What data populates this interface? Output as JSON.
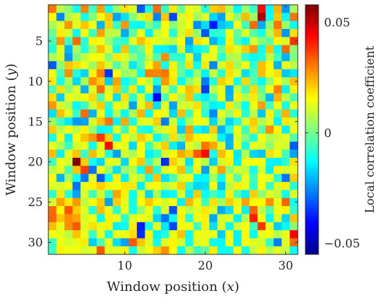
{
  "chart_data": {
    "type": "heatmap",
    "title": "",
    "xlabel": "Window position (x)",
    "ylabel": "Window position (y)",
    "xlabel_parts": {
      "text": "Window position ",
      "var": "x"
    },
    "ylabel_parts": {
      "text": "Window position ",
      "var": "y"
    },
    "colorbar_label": "Local correlation coefficient",
    "colormap": "jet",
    "xlim": [
      0.5,
      31.5
    ],
    "ylim": [
      0.5,
      31.5
    ],
    "y_reversed": true,
    "clim": [
      -0.055,
      0.058
    ],
    "x_ticks": [
      10,
      20,
      30
    ],
    "x_tick_labels": [
      "10",
      "20",
      "30"
    ],
    "y_ticks": [
      5,
      10,
      15,
      20,
      25,
      30
    ],
    "y_tick_labels": [
      "5",
      "10",
      "15",
      "20",
      "25",
      "30"
    ],
    "colorbar_ticks": [
      -0.05,
      0,
      0.05
    ],
    "colorbar_tick_labels": [
      "−0.05",
      "0",
      "0.05"
    ],
    "grid": false,
    "nx": 31,
    "ny": 31,
    "values": [
      [
        0.031,
        0.008,
        0.003,
        -0.011,
        0.029,
        -0.006,
        0.026,
        -0.012,
        0.004,
        0.019,
        0.012,
        -0.031,
        -0.009,
        0.032,
        -0.007,
        0.018,
        -0.001,
        0.013,
        0.011,
        -0.009,
        0.021,
        0.023,
        0.007,
        -0.013,
        0.004,
        -0.007,
        0.043,
        -0.013,
        0.024,
        -0.024,
        0.006
      ],
      [
        0.016,
        -0.026,
        0.007,
        0.012,
        -0.011,
        0.002,
        0.015,
        0.022,
        -0.023,
        -0.016,
        0.002,
        0.011,
        0.019,
        -0.026,
        0.022,
        -0.033,
        0.011,
        0.017,
        0.005,
        0.012,
        -0.017,
        -0.023,
        0.013,
        0.003,
        0.023,
        0.005,
        0.053,
        -0.012,
        0.022,
        -0.013,
        0.031
      ],
      [
        0.006,
        0.012,
        0.027,
        0.012,
        0.022,
        0.014,
        -0.021,
        0.02,
        -0.007,
        0.027,
        -0.012,
        -0.013,
        0.002,
        -0.007,
        0.016,
        0.002,
        0.01,
        0.014,
        -0.025,
        -0.016,
        -0.038,
        -0.019,
        -0.016,
        0.015,
        -0.006,
        0.032,
        -0.022,
        0.003,
        0.031,
        0.005,
        -0.012
      ],
      [
        -0.001,
        0.018,
        0.011,
        -0.012,
        0.016,
        -0.006,
        0.026,
        0.008,
        0.009,
        -0.022,
        -0.002,
        0.014,
        -0.014,
        0.009,
        0.015,
        -0.009,
        0.011,
        0.019,
        0.003,
        -0.031,
        -0.008,
        -0.008,
        0.014,
        -0.002,
        0.012,
        -0.003,
        -0.01,
        0.008,
        0.024,
        -0.024,
        0.019
      ],
      [
        -0.005,
        0.027,
        -0.006,
        0.032,
        -0.009,
        0.017,
        0.014,
        0.004,
        -0.006,
        -0.008,
        0.012,
        0.023,
        0.017,
        0.012,
        0.011,
        0.007,
        0.016,
        -0.023,
        0.019,
        0.015,
        -0.021,
        -0.014,
        0.017,
        -0.004,
        -0.013,
        0.011,
        0.002,
        -0.002,
        0.017,
        0.011,
        0.038
      ],
      [
        -0.009,
        0.013,
        -0.021,
        0.006,
        -0.009,
        0.006,
        0.023,
        0.012,
        -0.012,
        0.022,
        -0.007,
        -0.001,
        0.017,
        -0.013,
        -0.014,
        -0.017,
        0.011,
        -0.018,
        -0.013,
        -0.008,
        0.014,
        -0.002,
        0.019,
        0.012,
        0.021,
        0.027,
        -0.012,
        0.022,
        -0.012,
        0.032,
        0.003
      ],
      [
        0.006,
        0.011,
        -0.024,
        0.001,
        0.008,
        0.015,
        0.014,
        0.002,
        0.018,
        0.012,
        0.003,
        -0.005,
        0.01,
        -0.004,
        0.028,
        -0.007,
        -0.008,
        0.013,
        -0.018,
        0.013,
        0.014,
        -0.008,
        0.006,
        0.008,
        -0.008,
        -0.013,
        -0.009,
        0.009,
        -0.005,
        -0.021,
        0.002
      ],
      [
        -0.031,
        0.003,
        0.022,
        0.019,
        0.014,
        0.005,
        0.022,
        0.011,
        -0.004,
        0.008,
        -0.015,
        -0.003,
        0.014,
        0.026,
        -0.011,
        0.017,
        -0.003,
        0.019,
        -0.012,
        0.018,
        -0.026,
        0.011,
        0.02,
        0.005,
        0.016,
        -0.008,
        0.023,
        0.016,
        -0.021,
        0.014,
        0.008
      ],
      [
        0.014,
        -0.006,
        0.028,
        -0.009,
        -0.017,
        0.017,
        0.03,
        -0.035,
        0.016,
        0.004,
        0.007,
        -0.011,
        0.03,
        0.029,
        0.031,
        0.017,
        -0.002,
        -0.012,
        0.005,
        -0.014,
        0.01,
        -0.008,
        0.019,
        0.012,
        -0.016,
        -0.005,
        0.023,
        0.014,
        0.019,
        -0.019,
        -0.015
      ],
      [
        0.018,
        -0.011,
        0.007,
        -0.017,
        0.006,
        0.028,
        0.021,
        -0.018,
        0.026,
        -0.012,
        -0.006,
        0.015,
        0.009,
        -0.01,
        0.027,
        0.018,
        -0.013,
        0.003,
        0.011,
        -0.027,
        -0.009,
        0.021,
        0.017,
        -0.011,
        0.02,
        -0.003,
        -0.013,
        0.004,
        0.016,
        0.006,
        0.023
      ],
      [
        -0.004,
        0.019,
        0.003,
        0.012,
        -0.021,
        0.012,
        0.032,
        0.011,
        0.022,
        -0.007,
        0.018,
        -0.013,
        0.016,
        -0.023,
        0.011,
        -0.006,
        0.016,
        0.023,
        0.019,
        -0.034,
        0.008,
        0.013,
        -0.022,
        0.009,
        -0.006,
        0.02,
        -0.002,
        0.015,
        0.03,
        -0.014,
        0.017
      ],
      [
        0.019,
        -0.018,
        0.014,
        0.011,
        0.015,
        0.02,
        -0.004,
        0.016,
        -0.016,
        0.019,
        -0.008,
        0.012,
        -0.012,
        -0.042,
        -0.004,
        0.017,
        0.005,
        0.022,
        -0.008,
        -0.014,
        -0.004,
        0.014,
        -0.021,
        0.017,
        0.007,
        0.018,
        0.002,
        -0.02,
        0.024,
        0.008,
        -0.004
      ],
      [
        0.027,
        0.011,
        0.007,
        -0.013,
        -0.006,
        0.011,
        0.021,
        -0.008,
        0.014,
        0.012,
        -0.023,
        0.012,
        0.023,
        -0.016,
        0.013,
        -0.023,
        0.011,
        0.011,
        0.019,
        -0.005,
        -0.014,
        -0.012,
        0.018,
        0.004,
        -0.012,
        0.014,
        0.026,
        -0.005,
        0.016,
        -0.011,
        0.014
      ],
      [
        -0.016,
        0.023,
        0.012,
        -0.006,
        0.032,
        -0.021,
        0.014,
        -0.012,
        0.007,
        -0.013,
        0.007,
        0.024,
        -0.012,
        0.016,
        0.014,
        -0.017,
        0.023,
        -0.006,
        0.016,
        -0.008,
        -0.026,
        0.013,
        0.004,
        0.017,
        -0.009,
        0.008,
        -0.019,
        0.017,
        -0.005,
        0.024,
        -0.009
      ],
      [
        0.005,
        -0.006,
        -0.015,
        -0.024,
        -0.023,
        0.011,
        0.022,
        0.031,
        -0.014,
        0.025,
        -0.01,
        0.012,
        0.013,
        0.021,
        -0.027,
        0.011,
        -0.012,
        0.006,
        0.015,
        0.014,
        -0.017,
        0.007,
        -0.017,
        -0.008,
        0.011,
        0.021,
        0.007,
        0.012,
        -0.014,
        0.018,
        0.012
      ],
      [
        0.021,
        0.007,
        0.014,
        0.008,
        0.017,
        0.004,
        -0.013,
        -0.012,
        0.012,
        -0.006,
        0.017,
        -0.009,
        -0.011,
        0.009,
        0.012,
        0.018,
        -0.018,
        0.026,
        -0.013,
        -0.016,
        0.021,
        -0.021,
        -0.008,
        0.014,
        -0.006,
        0.019,
        -0.003,
        0.028,
        0.017,
        -0.014,
        0.014
      ],
      [
        -0.011,
        0.016,
        -0.014,
        0.016,
        0.022,
        0.027,
        0.038,
        0.021,
        -0.011,
        0.016,
        0.008,
        0.021,
        0.017,
        -0.013,
        -0.002,
        0.019,
        0.003,
        0.023,
        0.017,
        0.015,
        0.012,
        -0.014,
        -0.021,
        0.012,
        0.002,
        -0.009,
        0.015,
        0.007,
        0.01,
        0.013,
        -0.004
      ],
      [
        0.013,
        0.006,
        -0.006,
        0.011,
        0.013,
        -0.012,
        0.013,
        0.043,
        0.016,
        0.013,
        -0.017,
        0.016,
        -0.006,
        0.011,
        0.021,
        -0.014,
        -0.021,
        0.013,
        0.007,
        0.031,
        0.025,
        0.012,
        -0.021,
        0.014,
        -0.011,
        0.014,
        0.011,
        0.003,
        0.012,
        0.011,
        -0.031
      ],
      [
        0.023,
        -0.014,
        0.013,
        0.022,
        -0.007,
        0.023,
        0.013,
        -0.009,
        -0.023,
        0.011,
        0.006,
        0.015,
        -0.014,
        -0.008,
        0.011,
        0.016,
        0.025,
        0.021,
        0.034,
        0.043,
        -0.011,
        0.023,
        0.016,
        -0.015,
        0.008,
        -0.017,
        -0.019,
        0.019,
        0.014,
        -0.005,
        -0.023
      ],
      [
        -0.006,
        0.014,
        0.011,
        0.058,
        0.021,
        -0.011,
        -0.017,
        0.013,
        0.012,
        -0.017,
        0.016,
        0.022,
        -0.006,
        0.008,
        -0.036,
        0.021,
        0.012,
        -0.016,
        0.013,
        0.008,
        -0.018,
        0.011,
        0.017,
        -0.014,
        0.014,
        0.015,
        0.015,
        -0.013,
        -0.014,
        -0.008,
        0.019
      ],
      [
        0.008,
        0.013,
        -0.004,
        0.022,
        0.037,
        -0.028,
        0.015,
        0.004,
        -0.016,
        0.004,
        0.007,
        -0.012,
        0.026,
        -0.009,
        0.012,
        0.015,
        0.023,
        -0.006,
        0.017,
        -0.023,
        0.012,
        0.026,
        0.003,
        0.011,
        0.009,
        -0.011,
        0.011,
        -0.014,
        0.017,
        0.011,
        0.013
      ],
      [
        0.015,
        -0.021,
        0.006,
        -0.011,
        -0.027,
        0.013,
        -0.031,
        -0.012,
        0.017,
        -0.014,
        0.012,
        0.008,
        -0.011,
        0.022,
        -0.016,
        -0.004,
        0.011,
        0.016,
        -0.013,
        -0.013,
        0.006,
        -0.012,
        0.013,
        -0.004,
        0.014,
        -0.006,
        0.015,
        0.013,
        -0.008,
        -0.028,
        0.021
      ],
      [
        0.012,
        0.011,
        0.015,
        -0.028,
        0.013,
        0.017,
        0.021,
        0.017,
        0.014,
        0.018,
        0.018,
        -0.014,
        0.014,
        0.015,
        0.008,
        0.012,
        0.021,
        -0.007,
        -0.017,
        -0.016,
        0.015,
        -0.019,
        0.008,
        0.017,
        0.014,
        -0.008,
        0.016,
        -0.006,
        0.012,
        0.017,
        -0.009
      ],
      [
        -0.008,
        0.018,
        -0.008,
        -0.023,
        0.012,
        -0.006,
        0.011,
        -0.008,
        0.026,
        0.017,
        -0.012,
        0.012,
        -0.017,
        0.006,
        -0.014,
        -0.012,
        0.012,
        -0.014,
        0.021,
        -0.012,
        -0.005,
        -0.011,
        0.017,
        -0.004,
        -0.014,
        0.021,
        0.003,
        0.012,
        0.009,
        -0.012,
        0.012
      ],
      [
        0.011,
        0.026,
        0.018,
        0.027,
        0.008,
        0.016,
        0.021,
        -0.023,
        0.021,
        0.013,
        -0.011,
        0.016,
        0.022,
        0.016,
        0.011,
        0.015,
        -0.014,
        0.024,
        0.014,
        -0.006,
        0.019,
        0.005,
        0.021,
        0.013,
        0.026,
        0.016,
        0.016,
        0.028,
        0.013,
        0.033,
        -0.011
      ],
      [
        0.032,
        0.016,
        0.035,
        0.021,
        0.012,
        -0.009,
        0.023,
        0.013,
        -0.008,
        0.014,
        -0.011,
        0.003,
        0.015,
        -0.008,
        0.012,
        -0.032,
        0.016,
        0.007,
        0.012,
        0.018,
        0.012,
        -0.022,
        -0.016,
        0.016,
        -0.014,
        0.033,
        0.008,
        -0.004,
        0.014,
        0.017,
        -0.008
      ],
      [
        0.033,
        0.022,
        0.028,
        0.026,
        0.011,
        0.014,
        -0.012,
        0.017,
        0.014,
        -0.008,
        0.012,
        0.014,
        0.012,
        -0.017,
        -0.028,
        -0.012,
        0.017,
        -0.009,
        0.014,
        0.017,
        -0.022,
        0.011,
        0.012,
        -0.014,
        0.008,
        0.041,
        0.016,
        -0.013,
        0.012,
        -0.017,
        0.022
      ],
      [
        0.023,
        0.013,
        0.028,
        0.034,
        0.012,
        0.019,
        0.013,
        0.017,
        -0.014,
        -0.012,
        0.018,
        -0.038,
        -0.011,
        0.013,
        -0.015,
        -0.033,
        0.014,
        0.016,
        -0.006,
        0.017,
        -0.016,
        0.012,
        -0.012,
        0.011,
        0.015,
        -0.006,
        0.038,
        0.013,
        -0.018,
        -0.013,
        0.003
      ],
      [
        0.014,
        0.013,
        0.008,
        0.022,
        0.013,
        -0.006,
        0.013,
        -0.011,
        0.014,
        0.014,
        0.019,
        -0.036,
        0.017,
        -0.014,
        -0.009,
        0.013,
        0.022,
        -0.012,
        0.014,
        0.013,
        0.014,
        -0.018,
        0.014,
        -0.014,
        0.016,
        -0.013,
        0.013,
        0.015,
        0.007,
        0.013,
        0.045
      ],
      [
        -0.006,
        0.014,
        0.011,
        0.013,
        0.018,
        -0.018,
        -0.004,
        0.013,
        -0.016,
        -0.023,
        0.034,
        0.022,
        0.012,
        -0.012,
        0.012,
        0.017,
        0.011,
        -0.011,
        0.012,
        0.014,
        -0.012,
        -0.013,
        0.014,
        -0.014,
        0.016,
        0.012,
        0.011,
        -0.006,
        -0.027,
        0.012,
        0.032
      ],
      [
        -0.006,
        0.017,
        0.014,
        0.014,
        0.011,
        0.013,
        0.035,
        0.012,
        0.012,
        0.017,
        -0.011,
        0.009,
        0.014,
        0.021,
        0.028,
        0.016,
        -0.012,
        0.008,
        -0.006,
        -0.002,
        0.018,
        -0.012,
        -0.011,
        0.016,
        -0.011,
        0.009,
        0.017,
        0.007,
        0.012,
        0.009,
        -0.012
      ]
    ]
  }
}
